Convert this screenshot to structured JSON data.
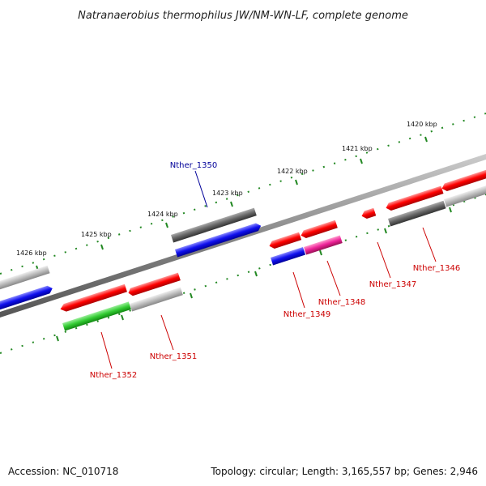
{
  "title": "Natranaerobius thermophilus JW/NM-WN-LF, complete genome",
  "footer": {
    "accession": "Accession: NC_010718",
    "info": "Topology: circular; Length: 3,165,557 bp; Genes: 2,946"
  },
  "scale": {
    "ticks": [
      "1420 kbp",
      "1421 kbp",
      "1422 kbp",
      "1423 kbp",
      "1424 kbp",
      "1425 kbp",
      "1426 kbp"
    ]
  },
  "genes": [
    {
      "name": "Nther_1346",
      "label": "Nther_1346",
      "label_color": "#cc0000"
    },
    {
      "name": "Nther_1347",
      "label": "Nther_1347",
      "label_color": "#cc0000"
    },
    {
      "name": "Nther_1348",
      "label": "Nther_1348",
      "label_color": "#cc0000"
    },
    {
      "name": "Nther_1349",
      "label": "Nther_1349",
      "label_color": "#cc0000"
    },
    {
      "name": "Nther_1350",
      "label": "Nther_1350",
      "label_color": "#000099"
    },
    {
      "name": "Nther_1351",
      "label": "Nther_1351",
      "label_color": "#cc0000"
    },
    {
      "name": "Nther_1352",
      "label": "Nther_1352",
      "label_color": "#cc0000"
    }
  ],
  "colors": {
    "red": "#ff0000",
    "blue": "#1010ee",
    "dark_gray": "#666666",
    "light_gray": "#bbbbbb",
    "green": "#33cc33",
    "magenta": "#ee2299",
    "backbone": "#888888",
    "tick": "#228822"
  }
}
